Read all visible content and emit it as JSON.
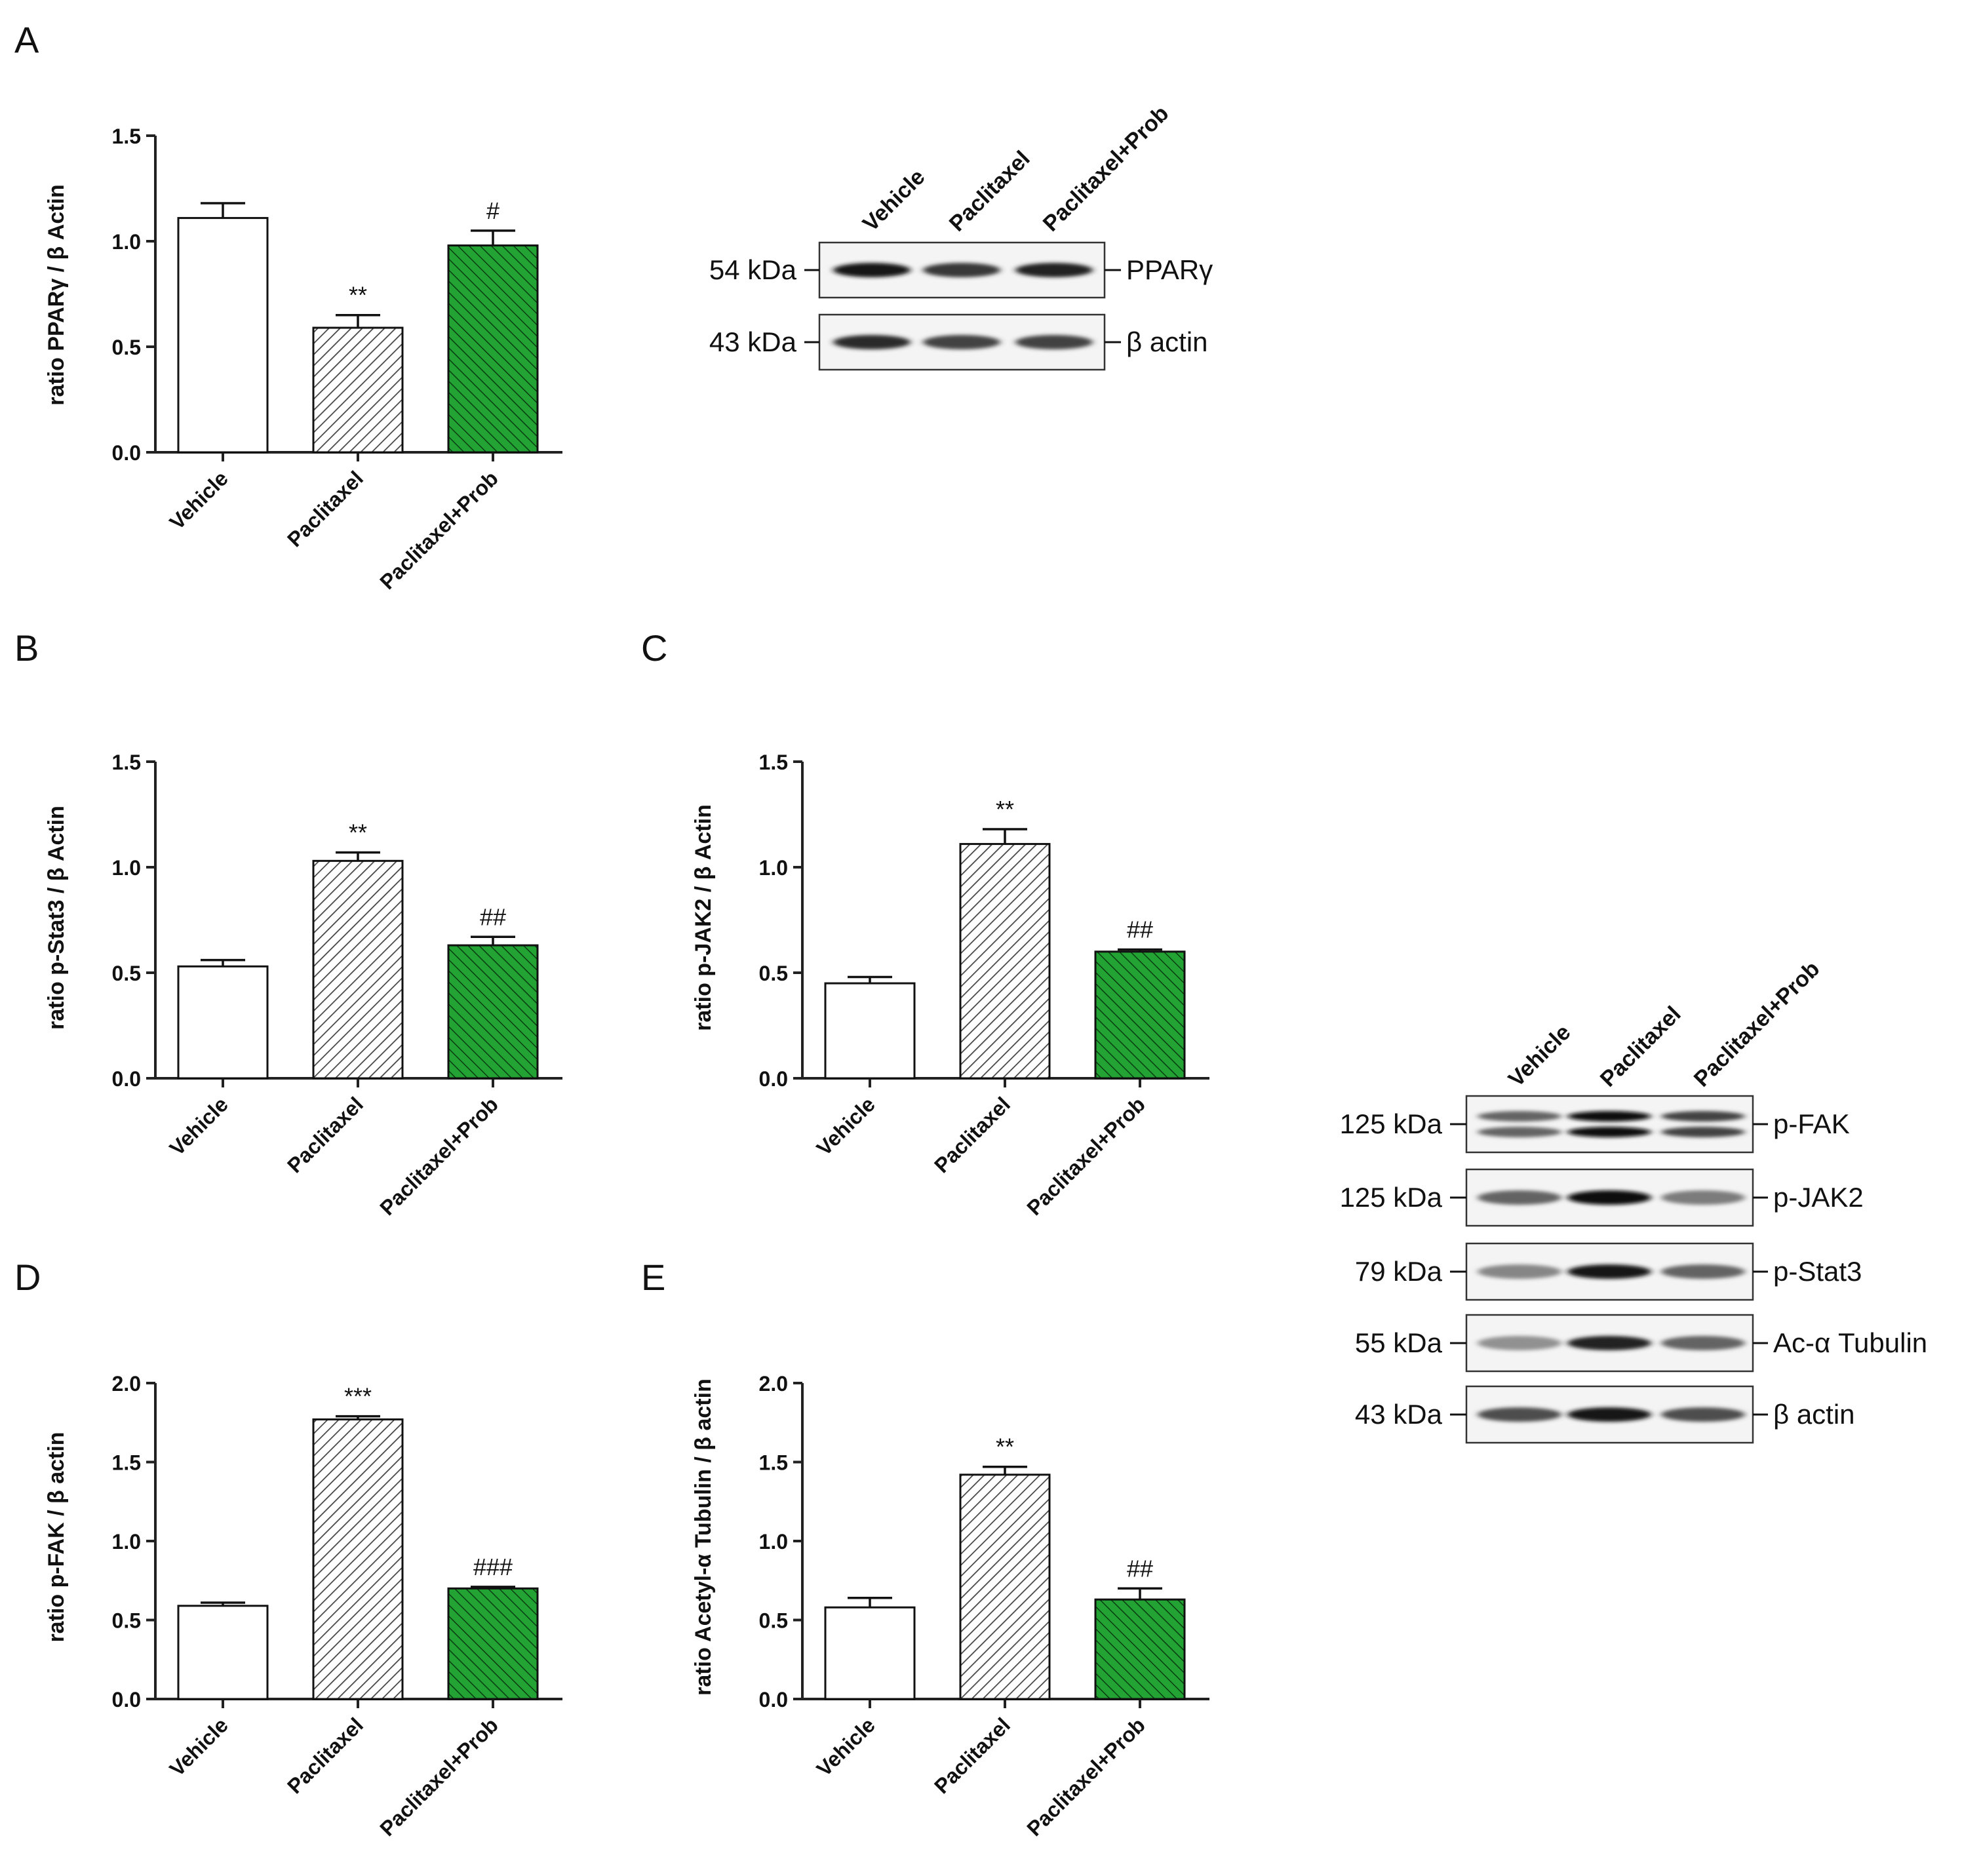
{
  "figure": {
    "colors": {
      "vehicle": "#ffffff",
      "paclitaxel_hatch": "#444444",
      "prob": "#22a333",
      "prob_hatch": "#0b3d12",
      "axis": "#222222"
    }
  },
  "chart_data": [
    {
      "id": "A",
      "panel_label": "A",
      "type": "bar",
      "ylabel": "ratio PPARγ / β Actin",
      "ylim": [
        0,
        1.5
      ],
      "yticks": [
        "0.0",
        "0.5",
        "1.0",
        "1.5"
      ],
      "ytick_values": [
        0,
        0.5,
        1.0,
        1.5
      ],
      "categories": [
        "Vehicle",
        "Paclitaxel",
        "Paclitaxel+Prob"
      ],
      "values": [
        1.11,
        0.59,
        0.98
      ],
      "errors": [
        0.07,
        0.06,
        0.07
      ],
      "annotations": [
        "",
        "**",
        "#"
      ]
    },
    {
      "id": "B",
      "panel_label": "B",
      "type": "bar",
      "ylabel": "ratio p-Stat3 / β Actin",
      "ylim": [
        0,
        1.5
      ],
      "yticks": [
        "0.0",
        "0.5",
        "1.0",
        "1.5"
      ],
      "ytick_values": [
        0,
        0.5,
        1.0,
        1.5
      ],
      "categories": [
        "Vehicle",
        "Paclitaxel",
        "Paclitaxel+Prob"
      ],
      "values": [
        0.53,
        1.03,
        0.63
      ],
      "errors": [
        0.03,
        0.04,
        0.04
      ],
      "annotations": [
        "",
        "**",
        "##"
      ]
    },
    {
      "id": "C",
      "panel_label": "C",
      "type": "bar",
      "ylabel": "ratio p-JAK2 / β Actin",
      "ylim": [
        0,
        1.5
      ],
      "yticks": [
        "0.0",
        "0.5",
        "1.0",
        "1.5"
      ],
      "ytick_values": [
        0,
        0.5,
        1.0,
        1.5
      ],
      "categories": [
        "Vehicle",
        "Paclitaxel",
        "Paclitaxel+Prob"
      ],
      "values": [
        0.45,
        1.11,
        0.6
      ],
      "errors": [
        0.03,
        0.07,
        0.01
      ],
      "annotations": [
        "",
        "**",
        "##"
      ]
    },
    {
      "id": "D",
      "panel_label": "D",
      "type": "bar",
      "ylabel": "ratio p-FAK / β actin",
      "ylim": [
        0,
        2.0
      ],
      "yticks": [
        "0.0",
        "0.5",
        "1.0",
        "1.5",
        "2.0"
      ],
      "ytick_values": [
        0,
        0.5,
        1.0,
        1.5,
        2.0
      ],
      "categories": [
        "Vehicle",
        "Paclitaxel",
        "Paclitaxel+Prob"
      ],
      "values": [
        0.59,
        1.77,
        0.7
      ],
      "errors": [
        0.02,
        0.02,
        0.01
      ],
      "annotations": [
        "",
        "***",
        "###"
      ]
    },
    {
      "id": "E",
      "panel_label": "E",
      "type": "bar",
      "ylabel": "ratio Acetyl-α Tubulin / β actin",
      "ylim": [
        0,
        2.0
      ],
      "yticks": [
        "0.0",
        "0.5",
        "1.0",
        "1.5",
        "2.0"
      ],
      "ytick_values": [
        0,
        0.5,
        1.0,
        1.5,
        2.0
      ],
      "categories": [
        "Vehicle",
        "Paclitaxel",
        "Paclitaxel+Prob"
      ],
      "values": [
        0.58,
        1.42,
        0.63
      ],
      "errors": [
        0.06,
        0.05,
        0.07
      ],
      "annotations": [
        "",
        "**",
        "##"
      ]
    }
  ],
  "blots": [
    {
      "id": "blotA",
      "lanes": [
        "Vehicle",
        "Paclitaxel",
        "Paclitaxel+Prob"
      ],
      "rows": [
        {
          "kda": "54 kDa",
          "label": "PPARγ",
          "intensity": [
            0.95,
            0.8,
            0.9
          ],
          "doublet": false
        },
        {
          "kda": "43 kDa",
          "label": "β actin",
          "intensity": [
            0.85,
            0.75,
            0.75
          ],
          "doublet": false
        }
      ]
    },
    {
      "id": "blotBCDE",
      "lanes": [
        "Vehicle",
        "Paclitaxel",
        "Paclitaxel+Prob"
      ],
      "rows": [
        {
          "kda": "125 kDa",
          "label": "p-FAK",
          "intensity": [
            0.6,
            1.0,
            0.75
          ],
          "doublet": true
        },
        {
          "kda": "125 kDa",
          "label": "p-JAK2",
          "intensity": [
            0.6,
            1.0,
            0.5
          ],
          "doublet": false
        },
        {
          "kda": "79 kDa",
          "label": "p-Stat3",
          "intensity": [
            0.45,
            0.95,
            0.6
          ],
          "doublet": false
        },
        {
          "kda": "55 kDa",
          "label": "Ac-α Tubulin",
          "intensity": [
            0.4,
            0.9,
            0.6
          ],
          "doublet": false
        },
        {
          "kda": "43 kDa",
          "label": "β actin",
          "intensity": [
            0.7,
            0.95,
            0.7
          ],
          "doublet": false
        }
      ]
    }
  ]
}
